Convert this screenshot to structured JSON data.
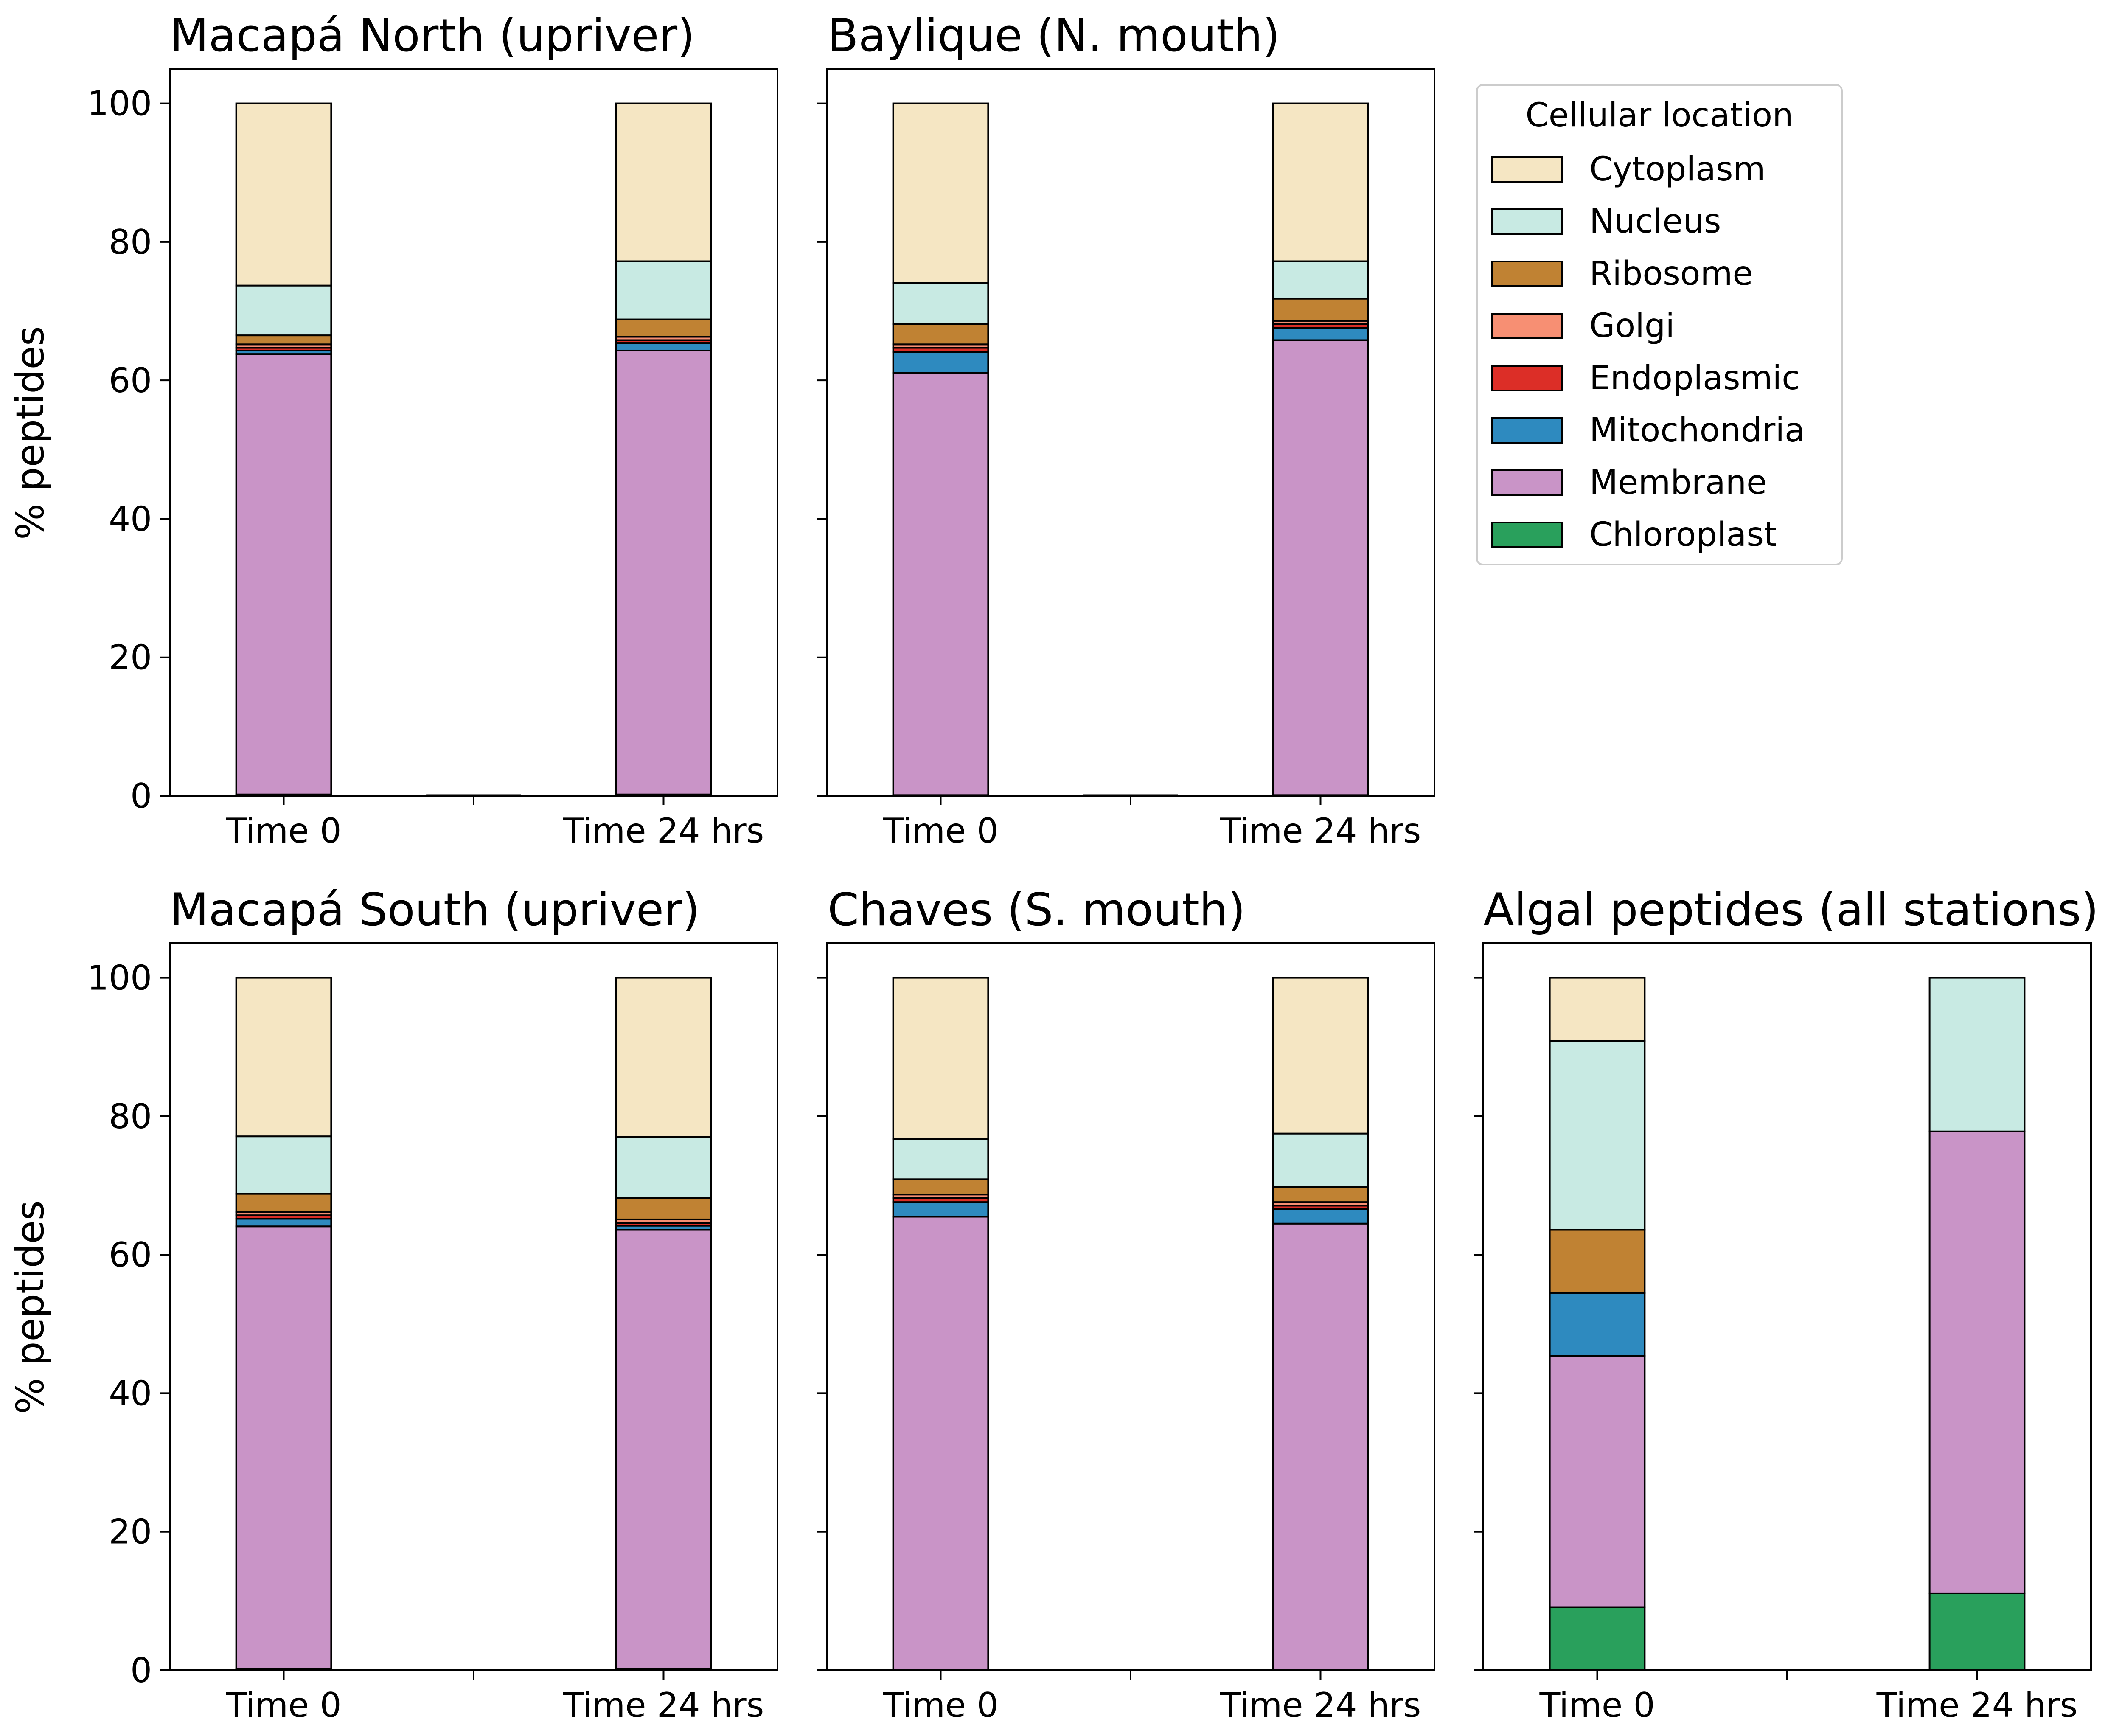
{
  "figure": {
    "ylabel": "% peptides",
    "colors": {
      "Cytoplasm": "#f5e6c3",
      "Nucleus": "#c8eae3",
      "Ribosome": "#c08233",
      "Golgi": "#f78f73",
      "Endoplasmic": "#dc2e27",
      "Mitochondria": "#2e8abf",
      "Membrane": "#c994c7",
      "Chloroplast": "#29a05c"
    }
  },
  "legend": {
    "title": "Cellular location",
    "placement": "right of top row",
    "items": [
      "Cytoplasm",
      "Nucleus",
      "Ribosome",
      "Golgi",
      "Endoplasmic",
      "Mitochondria",
      "Membrane",
      "Chloroplast"
    ]
  },
  "chart_data": [
    {
      "type": "bar",
      "stacked": true,
      "title": "Macapá North (upriver)",
      "categories": [
        "Time 0",
        "Time 24 hrs"
      ],
      "ylim": [
        0,
        105
      ],
      "yticks": [
        0,
        20,
        40,
        60,
        80,
        100
      ],
      "series": [
        {
          "name": "Chloroplast",
          "values": [
            0.2,
            0.2
          ]
        },
        {
          "name": "Membrane",
          "values": [
            63.6,
            64.1
          ]
        },
        {
          "name": "Mitochondria",
          "values": [
            0.5,
            1.1
          ]
        },
        {
          "name": "Endoplasmic",
          "values": [
            0.4,
            0.4
          ]
        },
        {
          "name": "Golgi",
          "values": [
            0.5,
            0.5
          ]
        },
        {
          "name": "Ribosome",
          "values": [
            1.3,
            2.5
          ]
        },
        {
          "name": "Nucleus",
          "values": [
            7.2,
            8.4
          ]
        },
        {
          "name": "Cytoplasm",
          "values": [
            26.3,
            22.8
          ]
        }
      ]
    },
    {
      "type": "bar",
      "stacked": true,
      "title": "Baylique (N. mouth)",
      "categories": [
        "Time 0",
        "Time 24 hrs"
      ],
      "ylim": [
        0,
        105
      ],
      "yticks": [
        0,
        20,
        40,
        60,
        80,
        100
      ],
      "series": [
        {
          "name": "Chloroplast",
          "values": [
            0.1,
            0.1
          ]
        },
        {
          "name": "Membrane",
          "values": [
            61.0,
            65.7
          ]
        },
        {
          "name": "Mitochondria",
          "values": [
            3.0,
            1.8
          ]
        },
        {
          "name": "Endoplasmic",
          "values": [
            0.6,
            0.5
          ]
        },
        {
          "name": "Golgi",
          "values": [
            0.5,
            0.5
          ]
        },
        {
          "name": "Ribosome",
          "values": [
            2.9,
            3.2
          ]
        },
        {
          "name": "Nucleus",
          "values": [
            6.0,
            5.4
          ]
        },
        {
          "name": "Cytoplasm",
          "values": [
            25.9,
            22.8
          ]
        }
      ]
    },
    {
      "type": "bar",
      "stacked": true,
      "title": "Macapá South (upriver)",
      "categories": [
        "Time 0",
        "Time 24 hrs"
      ],
      "ylim": [
        0,
        105
      ],
      "yticks": [
        0,
        20,
        40,
        60,
        80,
        100
      ],
      "series": [
        {
          "name": "Chloroplast",
          "values": [
            0.2,
            0.2
          ]
        },
        {
          "name": "Membrane",
          "values": [
            63.9,
            63.4
          ]
        },
        {
          "name": "Mitochondria",
          "values": [
            1.1,
            0.6
          ]
        },
        {
          "name": "Endoplasmic",
          "values": [
            0.5,
            0.4
          ]
        },
        {
          "name": "Golgi",
          "values": [
            0.5,
            0.5
          ]
        },
        {
          "name": "Ribosome",
          "values": [
            2.6,
            3.1
          ]
        },
        {
          "name": "Nucleus",
          "values": [
            8.3,
            8.8
          ]
        },
        {
          "name": "Cytoplasm",
          "values": [
            22.9,
            23.0
          ]
        }
      ]
    },
    {
      "type": "bar",
      "stacked": true,
      "title": "Chaves (S. mouth)",
      "categories": [
        "Time 0",
        "Time 24 hrs"
      ],
      "ylim": [
        0,
        105
      ],
      "yticks": [
        0,
        20,
        40,
        60,
        80,
        100
      ],
      "series": [
        {
          "name": "Chloroplast",
          "values": [
            0.1,
            0.1
          ]
        },
        {
          "name": "Membrane",
          "values": [
            65.4,
            64.4
          ]
        },
        {
          "name": "Mitochondria",
          "values": [
            2.1,
            2.1
          ]
        },
        {
          "name": "Endoplasmic",
          "values": [
            0.6,
            0.5
          ]
        },
        {
          "name": "Golgi",
          "values": [
            0.5,
            0.5
          ]
        },
        {
          "name": "Ribosome",
          "values": [
            2.2,
            2.2
          ]
        },
        {
          "name": "Nucleus",
          "values": [
            5.8,
            7.7
          ]
        },
        {
          "name": "Cytoplasm",
          "values": [
            23.3,
            22.5
          ]
        }
      ]
    },
    {
      "type": "bar",
      "stacked": true,
      "title": "Algal peptides (all stations)",
      "categories": [
        "Time 0",
        "Time 24 hrs"
      ],
      "ylim": [
        0,
        105
      ],
      "yticks": [
        0,
        20,
        40,
        60,
        80,
        100
      ],
      "series": [
        {
          "name": "Chloroplast",
          "values": [
            9.1,
            11.1
          ]
        },
        {
          "name": "Membrane",
          "values": [
            36.3,
            66.7
          ]
        },
        {
          "name": "Mitochondria",
          "values": [
            9.1,
            0
          ]
        },
        {
          "name": "Endoplasmic",
          "values": [
            0,
            0
          ]
        },
        {
          "name": "Golgi",
          "values": [
            0,
            0
          ]
        },
        {
          "name": "Ribosome",
          "values": [
            9.1,
            0
          ]
        },
        {
          "name": "Nucleus",
          "values": [
            27.3,
            22.2
          ]
        },
        {
          "name": "Cytoplasm",
          "values": [
            9.1,
            0
          ]
        }
      ]
    }
  ]
}
